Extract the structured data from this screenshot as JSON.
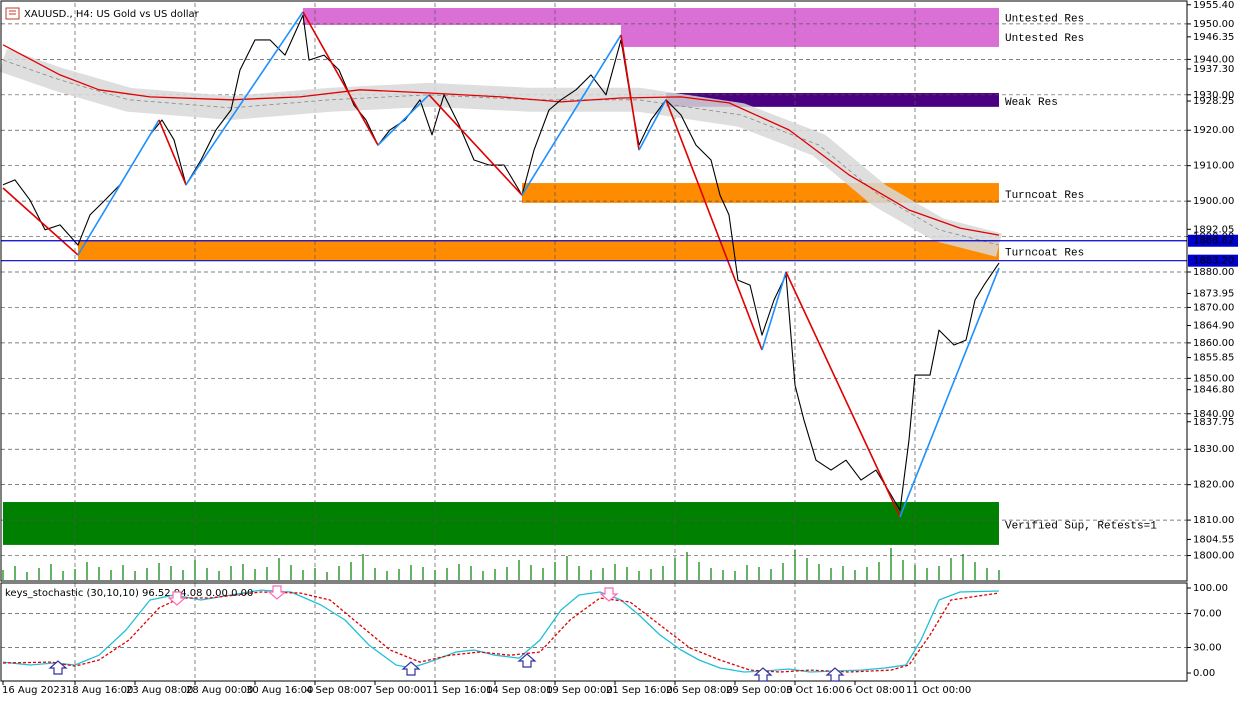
{
  "chart_data": [
    {
      "type": "line",
      "title": "XAUUSD., H4: US Gold vs US dollar",
      "xlim": [
        -1,
        394.67
      ],
      "ylim": [
        1793.1,
        1955.9
      ],
      "xticks": [
        {
          "value": 0,
          "label": "16 Aug 2023"
        },
        {
          "value": 24,
          "label": "18 Aug 16:00"
        },
        {
          "value": 44,
          "label": "23 Aug 08:00"
        },
        {
          "value": 64,
          "label": "28 Aug 00:00"
        },
        {
          "value": 84,
          "label": "30 Aug 16:00"
        },
        {
          "value": 104,
          "label": "4 Sep 08:00"
        },
        {
          "value": 124,
          "label": "7 Sep 00:00"
        },
        {
          "value": 144,
          "label": "11 Sep 16:00"
        },
        {
          "value": 164,
          "label": "14 Sep 08:00"
        },
        {
          "value": 184,
          "label": "19 Sep 00:00"
        },
        {
          "value": 204,
          "label": "21 Sep 16:00"
        },
        {
          "value": 224,
          "label": "26 Sep 08:00"
        },
        {
          "value": 244,
          "label": "29 Sep 00:00"
        },
        {
          "value": 264,
          "label": "3 Oct 16:00"
        },
        {
          "value": 284,
          "label": "6 Oct 08:00"
        },
        {
          "value": 304,
          "label": "11 Oct 00:00"
        }
      ],
      "yticks": [
        {
          "value": 1955.4,
          "label": "1955.40"
        },
        {
          "value": 1950,
          "label": "1950.00"
        },
        {
          "value": 1946.35,
          "label": "1946.35"
        },
        {
          "value": 1940,
          "label": "1940.00"
        },
        {
          "value": 1937.3,
          "label": "1937.30"
        },
        {
          "value": 1930,
          "label": "1930.00"
        },
        {
          "value": 1928.25,
          "label": "1928.25"
        },
        {
          "value": 1920,
          "label": "1920.00"
        },
        {
          "value": 1910,
          "label": "1910.00"
        },
        {
          "value": 1900,
          "label": "1900.00"
        },
        {
          "value": 1892.05,
          "label": "1892.05"
        },
        {
          "value": 1890,
          "label": "1890.00"
        },
        {
          "value": 1880,
          "label": "1880.00"
        },
        {
          "value": 1873.95,
          "label": "1873.95"
        },
        {
          "value": 1870,
          "label": "1870.00"
        },
        {
          "value": 1864.9,
          "label": "1864.90"
        },
        {
          "value": 1860,
          "label": "1860.00"
        },
        {
          "value": 1855.85,
          "label": "1855.85"
        },
        {
          "value": 1850,
          "label": "1850.00"
        },
        {
          "value": 1846.8,
          "label": "1846.80"
        },
        {
          "value": 1840,
          "label": "1840.00"
        },
        {
          "value": 1837.75,
          "label": "1837.75"
        },
        {
          "value": 1830,
          "label": "1830.00"
        },
        {
          "value": 1820,
          "label": "1820.00"
        },
        {
          "value": 1810,
          "label": "1810.00"
        },
        {
          "value": 1804.55,
          "label": "1804.55"
        },
        {
          "value": 1800,
          "label": "1800.00"
        }
      ],
      "grid": true,
      "series": [
        {
          "style": "band",
          "color": "#d8d8d8",
          "x": [
            0,
            19,
            42,
            76,
            109,
            142,
            176,
            212,
            246,
            272,
            292,
            312,
            332
          ],
          "values": [
            1939.8,
            1934.2,
            1928.6,
            1926.3,
            1928.6,
            1930,
            1928.6,
            1928.6,
            1924.3,
            1915.8,
            1901.7,
            1891.9,
            1887.6
          ]
        },
        {
          "style": "solid",
          "color": "#e00000",
          "x": [
            0,
            19,
            32,
            49,
            76,
            99,
            119,
            142,
            166,
            186,
            206,
            226,
            242,
            262,
            282,
            302,
            319,
            332
          ],
          "values": [
            1944.1,
            1935.6,
            1931.4,
            1929.4,
            1928.6,
            1929.4,
            1931.4,
            1930.5,
            1929.4,
            1928,
            1929.1,
            1929.4,
            1927.7,
            1920.1,
            1907.4,
            1897.5,
            1892.4,
            1890.4
          ]
        },
        {
          "style": "solid",
          "color": "#000000",
          "x": [
            0,
            4,
            9,
            14,
            19,
            25,
            29,
            34,
            39,
            44,
            49,
            53,
            57,
            61,
            66,
            71,
            76,
            79,
            84,
            89,
            94,
            100,
            102,
            107,
            112,
            117,
            121,
            125,
            129,
            134,
            139,
            143,
            147,
            152,
            157,
            162,
            167,
            173,
            177,
            182,
            186,
            191,
            196,
            201,
            206,
            209,
            212,
            216,
            221,
            226,
            231,
            236,
            239,
            242,
            245,
            249,
            253,
            257,
            261,
            264,
            267,
            271,
            276,
            281,
            286,
            291,
            296,
            299,
            302,
            304,
            309,
            312,
            317,
            321,
            324,
            327,
            332
          ],
          "values": [
            1904.6,
            1906,
            1900.3,
            1891.9,
            1893.3,
            1887.6,
            1896.1,
            1900.3,
            1904.6,
            1911.6,
            1918.7,
            1922.9,
            1917.3,
            1904.6,
            1911.6,
            1920.1,
            1925.7,
            1937,
            1945.5,
            1945.5,
            1941.2,
            1952.5,
            1939.8,
            1941.2,
            1937,
            1927.1,
            1922.9,
            1915.8,
            1920.1,
            1922.9,
            1928.6,
            1918.7,
            1930,
            1921.5,
            1911.6,
            1910.2,
            1910.2,
            1901.7,
            1914.4,
            1925.7,
            1928.6,
            1931.4,
            1935.6,
            1930,
            1945.5,
            1930,
            1915.8,
            1922.9,
            1928.6,
            1924.3,
            1915.8,
            1911.6,
            1901.7,
            1896.1,
            1877.7,
            1876.3,
            1862.2,
            1872.1,
            1879.2,
            1848.1,
            1838.2,
            1826.9,
            1824.1,
            1826.9,
            1821.3,
            1824.1,
            1817.1,
            1812.8,
            1832.6,
            1850.9,
            1850.9,
            1863.6,
            1859.4,
            1860.8,
            1872.1,
            1876.3,
            1882.5
          ]
        },
        {
          "style": "zigzag",
          "up_color": "#1e90ff",
          "down_color": "#e00000",
          "x": [
            0,
            25,
            52,
            61,
            100,
            125,
            142,
            173,
            206,
            212,
            221,
            253,
            261,
            299,
            332
          ],
          "values": [
            1903.7,
            1884.8,
            1922.9,
            1904.6,
            1953.4,
            1915.8,
            1930,
            1901.7,
            1946.9,
            1914.4,
            1928.6,
            1858,
            1880,
            1810.9,
            1881.1
          ]
        }
      ],
      "zones": [
        {
          "label": "Untested Res",
          "top": 1954.5,
          "bottom": 1949.7,
          "x_start": 100,
          "x_end": 332,
          "color": "#da70d6"
        },
        {
          "label": "Untested Res",
          "top": 1949.7,
          "bottom": 1943.5,
          "x_start": 206,
          "x_end": 332,
          "color": "#da70d6"
        },
        {
          "label": "Weak Res",
          "top": 1930.5,
          "bottom": 1926.6,
          "x_start": 221,
          "x_end": 332,
          "color": "#4b0082"
        },
        {
          "label": "Turncoat Res",
          "top": 1905.1,
          "bottom": 1899.5,
          "x_start": 173,
          "x_end": 332,
          "color": "#ff8c00"
        },
        {
          "label": "Turncoat Res",
          "top": 1888.8,
          "bottom": 1883.4,
          "x_start": 25,
          "x_end": 332,
          "color": "#ff8c00"
        },
        {
          "label": "Verified Sup, Retests=1",
          "top": 1815.1,
          "bottom": 1803.0,
          "x_start": 0,
          "x_end": 332,
          "color": "#008000"
        }
      ],
      "hlines": [
        {
          "value": 1888.82,
          "label": "1888.82",
          "color": "#0000cd"
        },
        {
          "value": 1883.2,
          "label": "1883.20",
          "color": "#0000cd"
        }
      ],
      "volume": {
        "color": "#008000",
        "ylim": [
          0,
          577
        ],
        "x": [
          0,
          4,
          8,
          12,
          16,
          20,
          24,
          28,
          32,
          36,
          40,
          44,
          48,
          52,
          56,
          60,
          64,
          68,
          72,
          76,
          80,
          84,
          88,
          92,
          96,
          100,
          104,
          108,
          112,
          116,
          120,
          124,
          128,
          132,
          136,
          140,
          144,
          148,
          152,
          156,
          160,
          164,
          168,
          172,
          176,
          180,
          184,
          188,
          192,
          196,
          200,
          204,
          208,
          212,
          216,
          220,
          224,
          228,
          232,
          236,
          240,
          244,
          248,
          252,
          256,
          260,
          264,
          268,
          272,
          276,
          280,
          284,
          288,
          292,
          296,
          300,
          304,
          308,
          312,
          316,
          320,
          324,
          328,
          332
        ],
        "values": [
          10,
          14,
          8,
          12,
          16,
          9,
          11,
          18,
          13,
          10,
          15,
          9,
          12,
          17,
          14,
          10,
          20,
          12,
          9,
          14,
          16,
          11,
          13,
          22,
          15,
          10,
          12,
          8,
          14,
          18,
          26,
          12,
          9,
          11,
          15,
          13,
          10,
          12,
          16,
          14,
          9,
          11,
          13,
          20,
          15,
          12,
          18,
          24,
          14,
          10,
          12,
          16,
          13,
          9,
          11,
          14,
          22,
          28,
          18,
          12,
          10,
          9,
          15,
          13,
          11,
          17,
          30,
          22,
          16,
          12,
          14,
          10,
          13,
          18,
          32,
          20,
          15,
          12,
          14,
          22,
          26,
          18,
          12,
          10
        ]
      }
    },
    {
      "type": "line",
      "title": "keys_stochastic (30,10,10) 96.52 94.08 0.00 0.00",
      "xlim": [
        -1,
        394.67
      ],
      "ylim": [
        -8.2,
        105.9
      ],
      "yticks": [
        {
          "value": 100,
          "label": "100.00"
        },
        {
          "value": 70,
          "label": "70.00"
        },
        {
          "value": 30,
          "label": "30.00"
        },
        {
          "value": 0,
          "label": "0.00"
        }
      ],
      "grid": true,
      "series": [
        {
          "style": "solid",
          "color": "#20c0d8",
          "x": [
            0,
            9,
            17,
            24,
            32,
            41,
            49,
            57,
            66,
            76,
            86,
            96,
            106,
            114,
            122,
            131,
            136,
            142,
            151,
            157,
            164,
            172,
            179,
            186,
            192,
            199,
            206,
            212,
            219,
            226,
            232,
            239,
            247,
            254,
            262,
            269,
            277,
            286,
            294,
            301,
            306,
            312,
            319,
            332
          ],
          "values": [
            12.9,
            9.4,
            11.8,
            9.4,
            21,
            50.6,
            85.9,
            91.8,
            85.9,
            91.8,
            97.6,
            95.3,
            80,
            62.4,
            32.9,
            9.4,
            5.9,
            12.9,
            24.7,
            27.1,
            21,
            17.6,
            38.8,
            74.1,
            91.8,
            95.3,
            85.9,
            68.2,
            44.7,
            27.1,
            15.3,
            5.9,
            1.2,
            2.4,
            4.7,
            1.2,
            2.4,
            3.5,
            5.9,
            9.4,
            38.8,
            85.9,
            95.3,
            96.52
          ]
        },
        {
          "style": "dashed",
          "color": "#e00000",
          "x": [
            0,
            16,
            24,
            32,
            42,
            52,
            59,
            69,
            86,
            99,
            109,
            119,
            129,
            139,
            149,
            159,
            169,
            179,
            189,
            199,
            209,
            219,
            229,
            239,
            249,
            259,
            269,
            282,
            296,
            302,
            309,
            316,
            332
          ],
          "values": [
            11.8,
            12.9,
            8.2,
            15.3,
            38.8,
            76.5,
            88.2,
            88.2,
            95.3,
            94.1,
            85.9,
            56.5,
            27.1,
            12.9,
            21,
            24.7,
            21,
            24.7,
            62.4,
            88.2,
            83.5,
            56.5,
            29.4,
            15.3,
            3.5,
            1.2,
            3.5,
            1.2,
            3.5,
            9.4,
            44.7,
            85.9,
            94.08
          ]
        }
      ]
    }
  ]
}
